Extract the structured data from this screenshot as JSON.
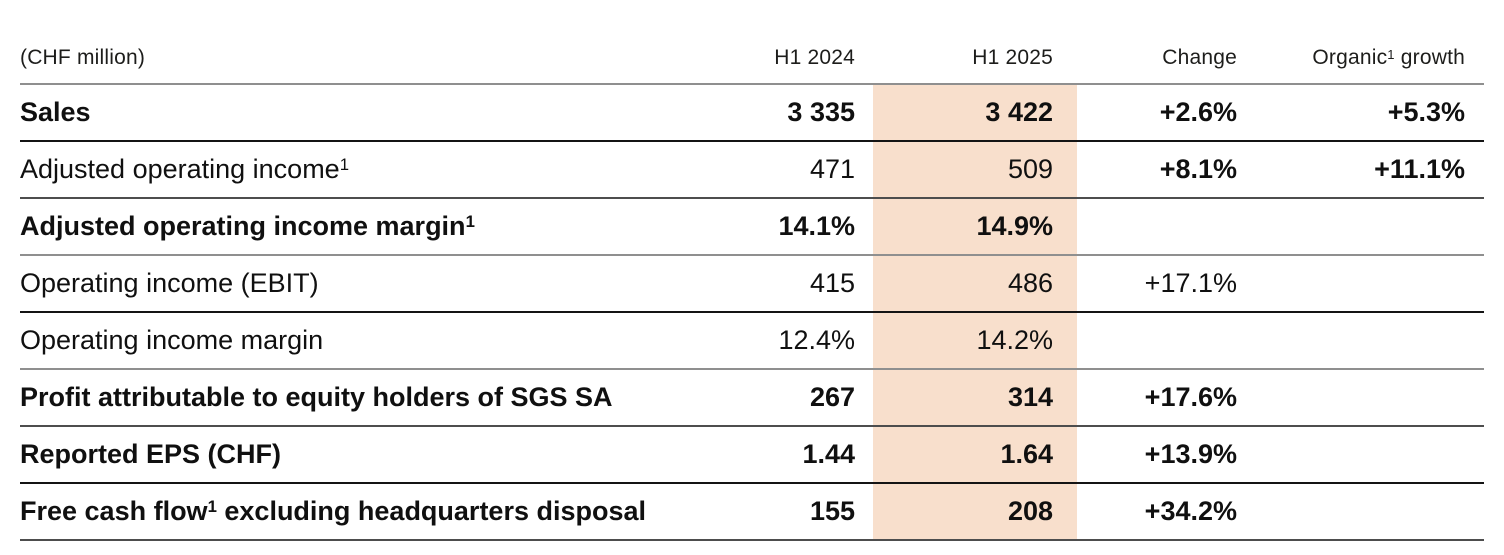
{
  "highlight_color": "#f8dfcc",
  "header": {
    "unit_label": "(CHF million)",
    "col_h1_2024": "H1 2024",
    "col_h1_2025": "H1 2025",
    "col_change": "Change",
    "col_organic_pre": "Organic",
    "col_organic_sup": "1",
    "col_organic_post": " growth"
  },
  "rows": [
    {
      "label_pre": "Sales",
      "label_sup": "",
      "label_post": "",
      "h1_2024": "3 335",
      "h1_2025": "3 422",
      "change": "+2.6%",
      "organic_growth": "+5.3%"
    },
    {
      "label_pre": "Adjusted operating income",
      "label_sup": "1",
      "label_post": "",
      "h1_2024": "471",
      "h1_2025": "509",
      "change": "+8.1%",
      "organic_growth": "+11.1%"
    },
    {
      "label_pre": "Adjusted operating income margin",
      "label_sup": "1",
      "label_post": "",
      "h1_2024": "14.1%",
      "h1_2025": "14.9%",
      "change": "",
      "organic_growth": ""
    },
    {
      "label_pre": "Operating income (EBIT)",
      "label_sup": "",
      "label_post": "",
      "h1_2024": "415",
      "h1_2025": "486",
      "change": "+17.1%",
      "organic_growth": ""
    },
    {
      "label_pre": "Operating income margin",
      "label_sup": "",
      "label_post": "",
      "h1_2024": "12.4%",
      "h1_2025": "14.2%",
      "change": "",
      "organic_growth": ""
    },
    {
      "label_pre": "Profit attributable to equity holders of SGS SA",
      "label_sup": "",
      "label_post": "",
      "h1_2024": "267",
      "h1_2025": "314",
      "change": "+17.6%",
      "organic_growth": ""
    },
    {
      "label_pre": "Reported EPS (CHF)",
      "label_sup": "",
      "label_post": "",
      "h1_2024": "1.44",
      "h1_2025": "1.64",
      "change": "+13.9%",
      "organic_growth": ""
    },
    {
      "label_pre": "Free cash flow",
      "label_sup": "1",
      "label_post": " excluding headquarters disposal",
      "h1_2024": "155",
      "h1_2025": "208",
      "change": "+34.2%",
      "organic_growth": ""
    }
  ]
}
